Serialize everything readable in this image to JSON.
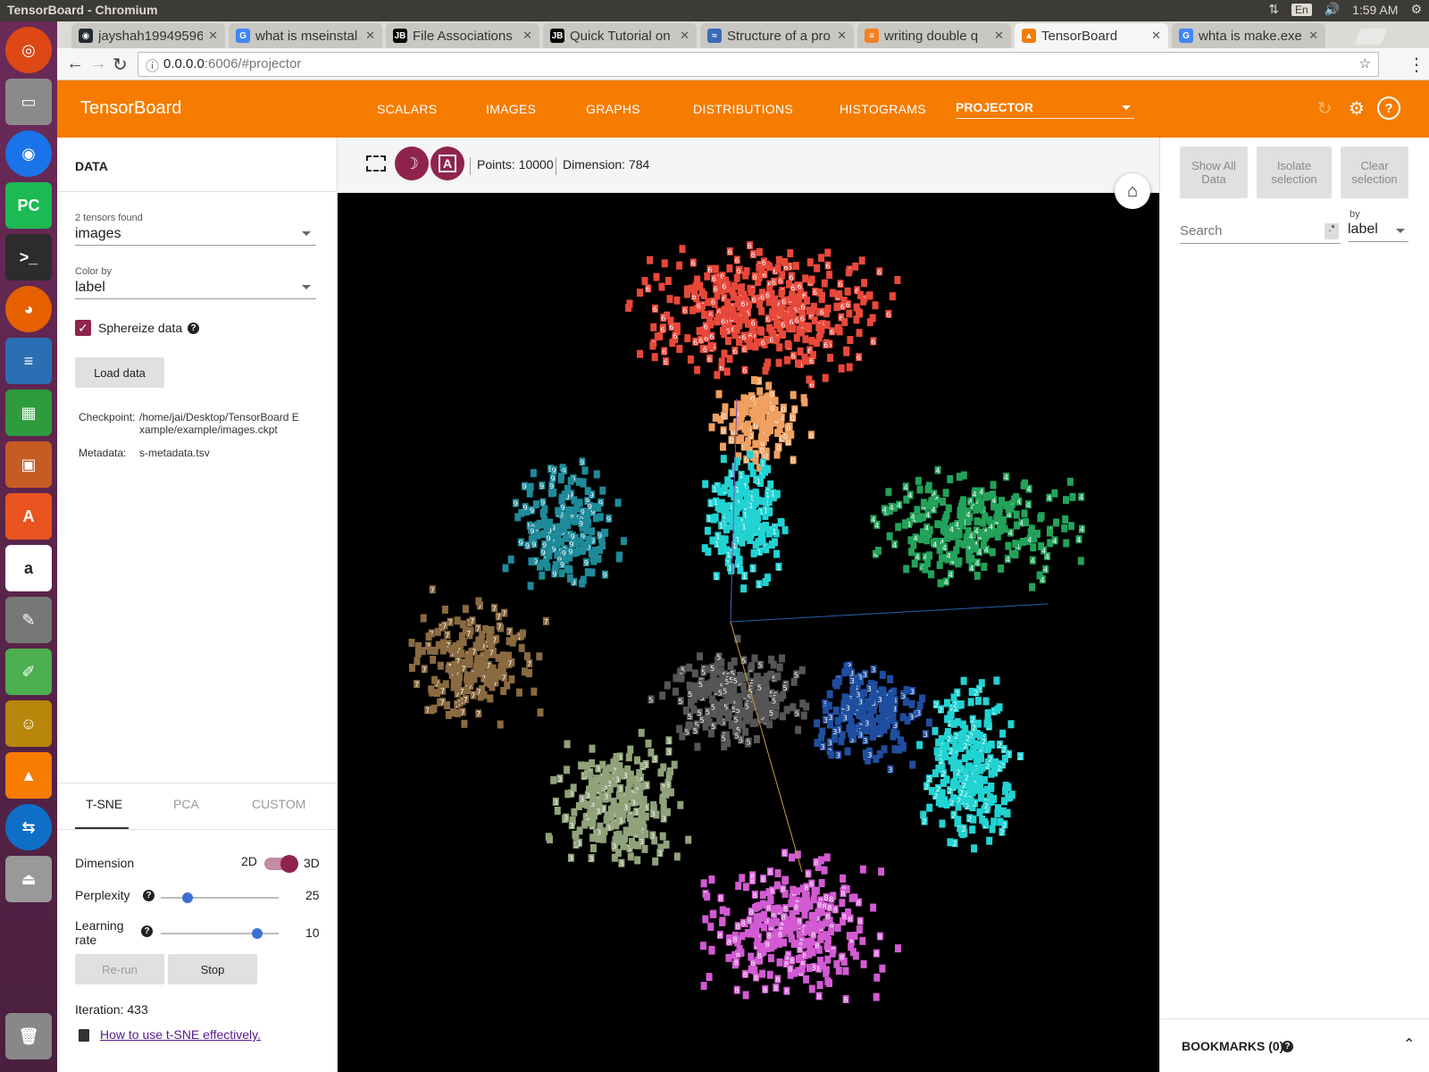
{
  "os": {
    "window_title": "TensorBoard - Chromium",
    "tray_lang": "En",
    "clock": "1:59 AM"
  },
  "browser": {
    "tabs": [
      {
        "label": "jayshah19949596",
        "color": "#24292e",
        "glyph": "◉"
      },
      {
        "label": "what is mseinstal",
        "color": "#4285f4",
        "glyph": "G"
      },
      {
        "label": "File Associations",
        "color": "#000000",
        "glyph": "JB"
      },
      {
        "label": "Quick Tutorial on",
        "color": "#000000",
        "glyph": "JB"
      },
      {
        "label": "Structure of a pro",
        "color": "#3b6ab7",
        "glyph": "≈"
      },
      {
        "label": "writing double q",
        "color": "#f48024",
        "glyph": "≡"
      },
      {
        "label": "TensorBoard",
        "color": "#f57c00",
        "glyph": "▲"
      },
      {
        "label": "whta is make.exe",
        "color": "#4285f4",
        "glyph": "G"
      }
    ],
    "url_host": "0.0.0.0",
    "url_path": ":6006/#projector"
  },
  "header": {
    "brand": "TensorBoard",
    "nav": [
      "SCALARS",
      "IMAGES",
      "GRAPHS",
      "DISTRIBUTIONS",
      "HISTOGRAMS"
    ],
    "projector": "PROJECTOR"
  },
  "left": {
    "title": "DATA",
    "tensors_found": "2 tensors found",
    "tensor_value": "images",
    "color_by_label": "Color by",
    "color_by_value": "label",
    "spherize": "Sphereize data",
    "load_data": "Load data",
    "checkpoint_label": "Checkpoint:",
    "checkpoint_value": "/home/jai/Desktop/TensorBoard E xample/example/images.ckpt",
    "metadata_label": "Metadata:",
    "metadata_value": "s-metadata.tsv",
    "algo_tabs": [
      "T-SNE",
      "PCA",
      "CUSTOM"
    ],
    "dimension_label": "Dimension",
    "dim_2d": "2D",
    "dim_3d": "3D",
    "perplexity_label": "Perplexity",
    "perplexity_value": "25",
    "lr_label_1": "Learning",
    "lr_label_2": "rate",
    "lr_value": "10",
    "rerun": "Re-run",
    "stop": "Stop",
    "iteration": "Iteration: 433",
    "tsne_link": "How to use t-SNE effectively."
  },
  "center": {
    "points": "Points: 10000",
    "dimension": "Dimension: 784",
    "night_glyph": "☽",
    "label_glyph": "A"
  },
  "right": {
    "show_all_1": "Show All",
    "show_all_2": "Data",
    "isolate_1": "Isolate",
    "isolate_2": "selection",
    "clear_1": "Clear",
    "clear_2": "selection",
    "search_placeholder": "Search",
    "regex": ".*",
    "by_label": "by",
    "by_value": "label",
    "bookmarks": "BOOKMARKS (0)"
  },
  "clusters": [
    {
      "digit": "6",
      "color": "#e8483a",
      "count": 420
    },
    {
      "digit": "0",
      "color": "#f0a060",
      "count": 160
    },
    {
      "digit": "1",
      "color": "#22d3d3",
      "count": 220
    },
    {
      "digit": "4",
      "color": "#23a25a",
      "count": 260
    },
    {
      "digit": "9",
      "color": "#1e8a9a",
      "count": 200
    },
    {
      "digit": "7",
      "color": "#8a6a40",
      "count": 220
    },
    {
      "digit": "5",
      "color": "#555555",
      "count": 260
    },
    {
      "digit": "3",
      "color": "#1f4ea0",
      "count": 200
    },
    {
      "digit": "2",
      "color": "#22d3d3",
      "count": 260
    },
    {
      "digit": "8",
      "color": "#d25ad2",
      "count": 320
    },
    {
      "digit": "3",
      "color": "#8fa27a",
      "count": 260
    }
  ]
}
